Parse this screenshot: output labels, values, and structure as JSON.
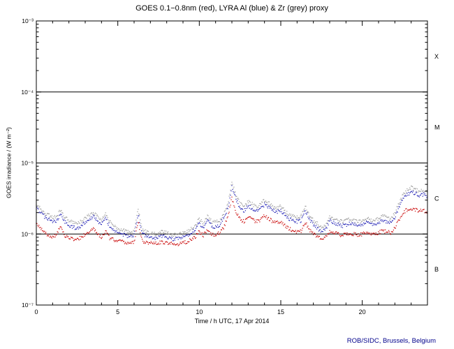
{
  "page": {
    "footer": "ROB/SIDC, Brussels, Belgium"
  },
  "chart_data": {
    "type": "scatter",
    "title": "GOES 0.1−0.8nm (red), LYRA Al (blue) & Zr (grey) proxy",
    "xlabel": "Time / h UTC, 17 Apr 2014",
    "ylabel": "GOES irradiance / (W m⁻²)",
    "xlim": [
      0,
      24
    ],
    "ylim": [
      1e-07,
      0.001
    ],
    "yscale": "log",
    "grid": false,
    "legend": "in title (colors)",
    "x_major_tick_values": [
      0,
      5,
      10,
      15,
      20
    ],
    "x_major_tick_labels": [
      "0",
      "5",
      "10",
      "15",
      "20"
    ],
    "x_minor_step": 1,
    "y_tick_values": [
      0.001,
      0.0001,
      1e-05,
      1e-06,
      1e-07
    ],
    "y_tick_labels": [
      "10⁻³",
      "10⁻⁴",
      "10⁻⁵",
      "10⁻⁶",
      "10⁻⁷"
    ],
    "hlines": [
      0.0001,
      1e-05,
      1e-06
    ],
    "flare_classes": [
      {
        "label": "X",
        "level": 0.000316
      },
      {
        "label": "M",
        "level": 3.16e-05
      },
      {
        "label": "C",
        "level": 3.16e-06
      },
      {
        "label": "B",
        "level": 3.16e-07
      }
    ],
    "value_scale": 1e-06,
    "x": [
      0,
      0.25,
      0.5,
      0.75,
      1,
      1.25,
      1.5,
      1.75,
      2,
      2.25,
      2.5,
      2.75,
      3,
      3.25,
      3.5,
      3.75,
      4,
      4.25,
      4.5,
      4.75,
      5,
      5.25,
      5.5,
      5.75,
      6,
      6.25,
      6.5,
      6.75,
      7,
      7.25,
      7.5,
      7.75,
      8,
      8.25,
      8.5,
      8.75,
      9,
      9.25,
      9.5,
      9.75,
      10,
      10.25,
      10.5,
      10.75,
      11,
      11.25,
      11.5,
      11.75,
      12,
      12.25,
      12.5,
      12.75,
      13,
      13.25,
      13.5,
      13.75,
      14,
      14.25,
      14.5,
      14.75,
      15,
      15.25,
      15.5,
      15.75,
      16,
      16.25,
      16.5,
      16.75,
      17,
      17.25,
      17.5,
      17.75,
      18,
      18.25,
      18.5,
      18.75,
      19,
      19.25,
      19.5,
      19.75,
      20,
      20.25,
      20.5,
      20.75,
      21,
      21.25,
      21.5,
      21.75,
      22,
      22.25,
      22.5,
      22.75,
      23,
      23.25,
      23.5,
      23.75,
      24
    ],
    "series": [
      {
        "name": "GOES 0.1-0.8nm",
        "color": "#c80000",
        "values": [
          1.5,
          1.2,
          1.05,
          0.95,
          0.9,
          1.0,
          1.35,
          0.95,
          0.88,
          0.85,
          0.83,
          0.9,
          1.0,
          1.1,
          1.2,
          1.0,
          0.9,
          1.1,
          0.88,
          0.82,
          0.8,
          0.78,
          0.76,
          0.75,
          0.78,
          1.5,
          0.8,
          0.76,
          0.75,
          0.74,
          0.75,
          0.76,
          0.75,
          0.73,
          0.72,
          0.73,
          0.75,
          0.78,
          0.85,
          0.9,
          1.1,
          0.95,
          1.15,
          1.0,
          0.95,
          1.05,
          1.25,
          1.7,
          3.2,
          2.1,
          1.6,
          1.5,
          1.75,
          1.6,
          1.5,
          1.55,
          1.8,
          1.65,
          1.5,
          1.45,
          1.5,
          1.3,
          1.2,
          1.1,
          1.05,
          1.1,
          1.5,
          1.15,
          1.0,
          0.92,
          0.88,
          0.9,
          1.1,
          1.05,
          1.0,
          0.95,
          1.0,
          1.02,
          1.0,
          0.98,
          1.0,
          1.05,
          1.02,
          1.0,
          1.05,
          1.1,
          1.08,
          1.05,
          1.2,
          1.6,
          2.0,
          2.2,
          2.3,
          2.2,
          2.1,
          2.15,
          2.05
        ]
      },
      {
        "name": "LYRA Al proxy",
        "color": "#1e1eb4",
        "values": [
          2.3,
          2.0,
          1.75,
          1.6,
          1.5,
          1.55,
          1.9,
          1.5,
          1.35,
          1.25,
          1.2,
          1.3,
          1.45,
          1.6,
          1.75,
          1.55,
          1.35,
          1.65,
          1.3,
          1.15,
          1.05,
          1.0,
          0.95,
          0.92,
          0.95,
          1.9,
          1.0,
          0.93,
          0.9,
          0.88,
          0.9,
          0.93,
          0.9,
          0.86,
          0.84,
          0.86,
          0.9,
          0.95,
          1.05,
          1.15,
          1.45,
          1.2,
          1.55,
          1.3,
          1.25,
          1.35,
          1.7,
          2.3,
          4.6,
          3.1,
          2.3,
          2.1,
          2.5,
          2.3,
          2.1,
          2.25,
          2.6,
          2.4,
          2.15,
          2.05,
          2.15,
          1.85,
          1.65,
          1.55,
          1.5,
          1.55,
          2.15,
          1.65,
          1.35,
          1.2,
          1.1,
          1.15,
          1.55,
          1.45,
          1.35,
          1.3,
          1.35,
          1.4,
          1.35,
          1.3,
          1.35,
          1.45,
          1.4,
          1.35,
          1.45,
          1.55,
          1.5,
          1.45,
          1.7,
          2.4,
          3.1,
          3.6,
          3.9,
          3.7,
          3.5,
          3.6,
          3.4
        ]
      },
      {
        "name": "LYRA Zr proxy",
        "color": "#9a9a9a",
        "values": [
          2.6,
          2.3,
          2.0,
          1.85,
          1.7,
          1.8,
          2.2,
          1.7,
          1.55,
          1.45,
          1.4,
          1.5,
          1.65,
          1.85,
          2.0,
          1.8,
          1.55,
          1.9,
          1.5,
          1.3,
          1.2,
          1.15,
          1.1,
          1.05,
          1.1,
          2.2,
          1.15,
          1.07,
          1.03,
          1.0,
          1.03,
          1.07,
          1.03,
          0.99,
          0.97,
          0.99,
          1.03,
          1.1,
          1.2,
          1.3,
          1.65,
          1.4,
          1.8,
          1.5,
          1.45,
          1.55,
          1.95,
          2.65,
          5.3,
          3.55,
          2.65,
          2.4,
          2.85,
          2.65,
          2.4,
          2.6,
          3.0,
          2.75,
          2.45,
          2.35,
          2.45,
          2.1,
          1.9,
          1.8,
          1.7,
          1.8,
          2.45,
          1.9,
          1.55,
          1.4,
          1.25,
          1.3,
          1.8,
          1.65,
          1.55,
          1.5,
          1.55,
          1.6,
          1.55,
          1.5,
          1.55,
          1.65,
          1.6,
          1.55,
          1.65,
          1.8,
          1.7,
          1.65,
          1.95,
          2.75,
          3.55,
          4.1,
          4.5,
          4.25,
          4.0,
          4.1,
          3.9
        ]
      }
    ]
  }
}
